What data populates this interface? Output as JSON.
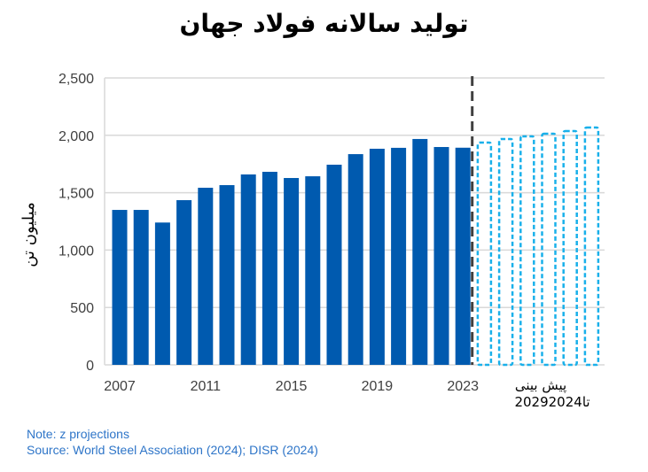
{
  "title": "تولید سالانه فولاد جهان",
  "chart_data": {
    "type": "bar",
    "title": "تولید سالانه فولاد جهان",
    "ylabel": "میلیون تن",
    "xlabel": "",
    "ylim": [
      0,
      2500
    ],
    "yticks": [
      "0",
      "500",
      "1,000",
      "1,500",
      "2,000",
      "2,500"
    ],
    "ytick_values": [
      0,
      500,
      1000,
      1500,
      2000,
      2500
    ],
    "xtick_labels": [
      "2007",
      "2011",
      "2015",
      "2019",
      "2023"
    ],
    "forecast_label_line1": "پیش بینی",
    "forecast_label_line2": "2029تا2024",
    "grid": "horizontal",
    "categories": [
      "2007",
      "2008",
      "2009",
      "2010",
      "2011",
      "2012",
      "2013",
      "2014",
      "2015",
      "2016",
      "2017",
      "2018",
      "2019",
      "2020",
      "2021",
      "2022",
      "2023",
      "2024",
      "2025",
      "2026",
      "2027",
      "2028",
      "2029"
    ],
    "series": [
      {
        "values": [
          1350,
          1350,
          1240,
          1435,
          1543,
          1566,
          1659,
          1682,
          1628,
          1643,
          1744,
          1836,
          1883,
          1891,
          1968,
          1898,
          1892,
          null,
          null,
          null,
          null,
          null,
          null
        ],
        "style": "solid",
        "color": "#005aaf"
      },
      {
        "values": [
          null,
          null,
          null,
          null,
          null,
          null,
          null,
          null,
          null,
          null,
          null,
          null,
          null,
          null,
          null,
          null,
          null,
          1937,
          1968,
          1991,
          2014,
          2037,
          2068
        ],
        "style": "dashed-outline",
        "color": "#19b0ea"
      }
    ],
    "divider_after": "2023",
    "divider_color": "#404040"
  },
  "notes": {
    "note": "Note: z projections",
    "source": "Source: World Steel Association (2024); DISR (2024)"
  }
}
